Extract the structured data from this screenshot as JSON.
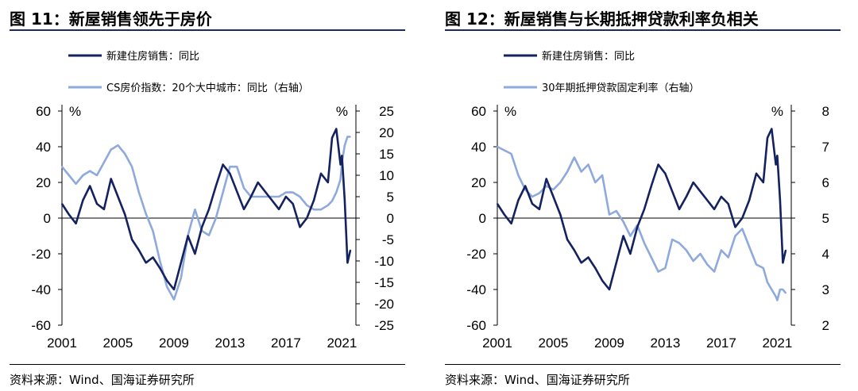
{
  "charts": [
    {
      "figure_title": "图 11：新屋销售领先于房价",
      "source": "资料来源：Wind、国海证券研究所",
      "colors": {
        "primary": "#14225f",
        "secondary": "#8ea9db"
      }
    },
    {
      "figure_title": "图 12：新屋销售与长期抵押贷款利率负相关",
      "source": "资料来源：Wind、国海证券研究所",
      "colors": {
        "primary": "#14225f",
        "secondary": "#8ea9db"
      }
    }
  ],
  "chart_data": [
    {
      "type": "line",
      "title": "图 11：新屋销售领先于房价",
      "x_ticks": [
        "2001",
        "2005",
        "2009",
        "2013",
        "2017",
        "2021"
      ],
      "xlim": [
        2001,
        2022
      ],
      "y_left": {
        "unit": "%",
        "ylim": [
          -60,
          60
        ],
        "ticks": [
          "60",
          "40",
          "20",
          "0",
          "-20",
          "-40",
          "-60"
        ]
      },
      "y_right": {
        "unit": "%",
        "ylim": [
          -25,
          25
        ],
        "ticks": [
          "25",
          "20",
          "15",
          "10",
          "5",
          "0",
          "-5",
          "-10",
          "-15",
          "-20",
          "-25"
        ]
      },
      "series": [
        {
          "name": "新建住房销售：同比",
          "axis": "left",
          "style": "dark",
          "x": [
            2001,
            2001.5,
            2002,
            2002.5,
            2003,
            2003.5,
            2004,
            2004.5,
            2005,
            2005.5,
            2006,
            2006.5,
            2007,
            2007.5,
            2008,
            2008.5,
            2009,
            2009.5,
            2010,
            2010.5,
            2011,
            2011.5,
            2012,
            2012.5,
            2013,
            2013.5,
            2014,
            2014.5,
            2015,
            2015.5,
            2016,
            2016.5,
            2017,
            2017.5,
            2018,
            2018.5,
            2019,
            2019.5,
            2020,
            2020.3,
            2020.6,
            2020.9,
            2021,
            2021.2,
            2021.4,
            2021.6
          ],
          "values": [
            8,
            2,
            -3,
            10,
            18,
            8,
            5,
            22,
            12,
            2,
            -12,
            -18,
            -25,
            -22,
            -28,
            -35,
            -40,
            -25,
            -10,
            -20,
            -5,
            5,
            18,
            30,
            25,
            15,
            5,
            12,
            20,
            15,
            10,
            5,
            12,
            8,
            -5,
            0,
            10,
            25,
            20,
            45,
            50,
            30,
            35,
            10,
            -25,
            -18
          ]
        },
        {
          "name": "CS房价指数：20个大中城市：同比（右轴）",
          "axis": "right",
          "style": "light",
          "x": [
            2001,
            2001.5,
            2002,
            2002.5,
            2003,
            2003.5,
            2004,
            2004.5,
            2005,
            2005.5,
            2006,
            2006.5,
            2007,
            2007.5,
            2008,
            2008.5,
            2009,
            2009.5,
            2010,
            2010.5,
            2011,
            2011.5,
            2012,
            2012.5,
            2013,
            2013.5,
            2014,
            2014.5,
            2015,
            2015.5,
            2016,
            2016.5,
            2017,
            2017.5,
            2018,
            2018.5,
            2019,
            2019.5,
            2020,
            2020.3,
            2020.6,
            2020.9,
            2021,
            2021.2,
            2021.4,
            2021.6
          ],
          "values": [
            12,
            10,
            8,
            10,
            11,
            10,
            13,
            16,
            17,
            15,
            12,
            6,
            1,
            -3,
            -10,
            -16,
            -19,
            -14,
            -4,
            2,
            -3,
            -4,
            0,
            6,
            12,
            12,
            7,
            5,
            5,
            5,
            5,
            5,
            6,
            6,
            5,
            3,
            2,
            2,
            3,
            4,
            6,
            9,
            13,
            17,
            19,
            19
          ]
        }
      ]
    },
    {
      "type": "line",
      "title": "图 12：新屋销售与长期抵押贷款利率负相关",
      "x_ticks": [
        "2001",
        "2005",
        "2009",
        "2013",
        "2017",
        "2021"
      ],
      "xlim": [
        2001,
        2022
      ],
      "y_left": {
        "unit": "%",
        "ylim": [
          -60,
          60
        ],
        "ticks": [
          "60",
          "40",
          "20",
          "0",
          "-20",
          "-40",
          "-60"
        ]
      },
      "y_right": {
        "unit": "%",
        "ylim": [
          2,
          8
        ],
        "ticks": [
          "8",
          "7",
          "6",
          "5",
          "4",
          "3",
          "2"
        ]
      },
      "series": [
        {
          "name": "新建住房销售：同比",
          "axis": "left",
          "style": "dark",
          "x": [
            2001,
            2001.5,
            2002,
            2002.5,
            2003,
            2003.5,
            2004,
            2004.5,
            2005,
            2005.5,
            2006,
            2006.5,
            2007,
            2007.5,
            2008,
            2008.5,
            2009,
            2009.5,
            2010,
            2010.5,
            2011,
            2011.5,
            2012,
            2012.5,
            2013,
            2013.5,
            2014,
            2014.5,
            2015,
            2015.5,
            2016,
            2016.5,
            2017,
            2017.5,
            2018,
            2018.5,
            2019,
            2019.5,
            2020,
            2020.3,
            2020.6,
            2020.9,
            2021,
            2021.2,
            2021.4,
            2021.6
          ],
          "values": [
            8,
            2,
            -3,
            10,
            18,
            8,
            5,
            22,
            12,
            2,
            -12,
            -18,
            -25,
            -22,
            -28,
            -35,
            -40,
            -25,
            -10,
            -20,
            -5,
            5,
            18,
            30,
            25,
            15,
            5,
            12,
            20,
            15,
            10,
            5,
            12,
            8,
            -5,
            0,
            10,
            25,
            20,
            45,
            50,
            30,
            35,
            10,
            -25,
            -18
          ]
        },
        {
          "name": "30年期抵押贷款固定利率（右轴）",
          "axis": "right",
          "style": "light",
          "x": [
            2001,
            2001.5,
            2002,
            2002.5,
            2003,
            2003.5,
            2004,
            2004.5,
            2005,
            2005.5,
            2006,
            2006.5,
            2007,
            2007.5,
            2008,
            2008.5,
            2009,
            2009.5,
            2010,
            2010.5,
            2011,
            2011.5,
            2012,
            2012.5,
            2013,
            2013.5,
            2014,
            2014.5,
            2015,
            2015.5,
            2016,
            2016.5,
            2017,
            2017.5,
            2018,
            2018.5,
            2019,
            2019.5,
            2020,
            2020.3,
            2020.6,
            2020.9,
            2021,
            2021.2,
            2021.4,
            2021.6
          ],
          "values": [
            7.0,
            6.9,
            6.8,
            6.2,
            5.8,
            5.6,
            5.7,
            5.9,
            5.8,
            6.0,
            6.3,
            6.7,
            6.3,
            6.5,
            6.0,
            6.2,
            5.1,
            5.2,
            4.9,
            4.5,
            4.8,
            4.3,
            3.9,
            3.5,
            3.6,
            4.4,
            4.3,
            4.1,
            3.8,
            4.0,
            3.7,
            3.5,
            4.1,
            3.9,
            4.5,
            4.7,
            4.2,
            3.7,
            3.6,
            3.2,
            3.0,
            2.8,
            2.7,
            3.0,
            3.0,
            2.9
          ]
        }
      ]
    }
  ]
}
